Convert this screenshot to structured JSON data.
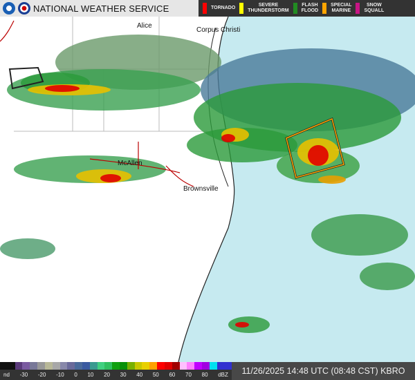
{
  "header": {
    "title": "NATIONAL WEATHER SERVICE",
    "logos": [
      "noaa-logo",
      "nws-logo"
    ]
  },
  "warnings_legend": [
    {
      "label": "TORNADO",
      "color": "#ff0000"
    },
    {
      "label": "SEVERE THUNDERSTORM",
      "color": "#ffff00"
    },
    {
      "label": "FLASH FLOOD",
      "color": "#228b22"
    },
    {
      "label": "SPECIAL MARINE",
      "color": "#ffa500"
    },
    {
      "label": "SNOW SQUALL",
      "color": "#c71585"
    }
  ],
  "cities": [
    "Alice",
    "Corpus Christi",
    "McAllen",
    "Brownsville"
  ],
  "colorbar": {
    "ticks": [
      "nd",
      "-30",
      "-20",
      "-10",
      "0",
      "10",
      "20",
      "30",
      "40",
      "50",
      "60",
      "70",
      "80",
      "dBZ"
    ],
    "colors": [
      "#111",
      "#111",
      "#5a3a7a",
      "#7a5aa0",
      "#787898",
      "#989898",
      "#b8b898",
      "#a8a8a8",
      "#8888aa",
      "#6a6a9a",
      "#4a6a9a",
      "#3a5aa0",
      "#3a9a90",
      "#40d080",
      "#30c060",
      "#10a010",
      "#089008",
      "#78b000",
      "#c8c800",
      "#e8d000",
      "#ffa000",
      "#ff0000",
      "#e00000",
      "#a00000",
      "#ffc0ff",
      "#ff80ff",
      "#c000ff",
      "#a000e0",
      "#00e0f0",
      "#3030d0",
      "#3030d0"
    ]
  },
  "timestamp": "11/26/2025 14:48 UTC (08:48 CST) KBRO",
  "map": {
    "land_color": "#ffffff",
    "water_color": "#c6eaf0",
    "warning_polygon_type": "SPECIAL MARINE"
  }
}
